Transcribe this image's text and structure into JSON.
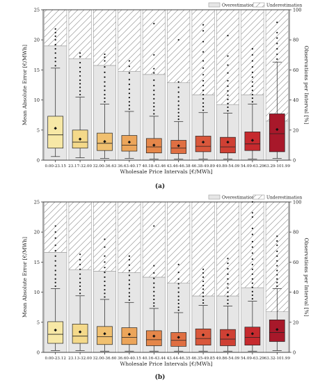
{
  "panel_labels": [
    "(a)",
    "(b)"
  ],
  "legend": {
    "over": "Overestimation",
    "under": "Underestimation"
  },
  "chart_data": [
    {
      "type": "box",
      "title": "",
      "xlabel": "Wholesale Price Intervals [€/MWh]",
      "ylabel": "Mean Absolute Error [€/MWh]",
      "ylabel_right": "Observations per Interval [%]",
      "ylim": [
        0,
        25
      ],
      "ylim_right": [
        0,
        100
      ],
      "yticks": [
        "0",
        "5",
        "10",
        "15",
        "20",
        "25"
      ],
      "yticks_right": [
        "0",
        "20",
        "40",
        "60",
        "80",
        "100"
      ],
      "legend_position": "top-right",
      "categories": [
        "0.00-23.15",
        "23.17-32.00",
        "32.00-36.63",
        "36.63-40.17",
        "40.18-43.46",
        "43.46-46.38",
        "46.38-49.89",
        "49.89-54.09",
        "54.09-63.29",
        "63.29-101.99"
      ],
      "overestimation_pct": [
        76,
        67.5,
        63,
        59,
        57,
        51.5,
        43.5,
        37,
        43.5,
        26
      ],
      "box_colors": [
        "#f7e8a6",
        "#f4d98a",
        "#f0c070",
        "#eca55a",
        "#e5874a",
        "#e06f42",
        "#d9573b",
        "#cf4034",
        "#c62a2e",
        "#a8182a"
      ],
      "boxes": [
        {
          "whislo": 0.6,
          "q1": 2.0,
          "med": 4.2,
          "q3": 7.3,
          "whishi": 15.3,
          "mean": 5.3,
          "fliers": [
            15.7,
            16.4,
            17.0,
            17.8,
            18.5,
            19.2,
            20.0,
            20.6,
            21.2,
            21.8
          ]
        },
        {
          "whislo": 0.4,
          "q1": 2.0,
          "med": 3.0,
          "q3": 5.0,
          "whishi": 10.5,
          "mean": 3.5,
          "fliers": [
            10.9,
            11.5,
            12.1,
            12.7,
            13.3,
            14.0,
            14.7,
            15.4,
            16.2,
            17.2,
            17.8
          ]
        },
        {
          "whislo": 0.3,
          "q1": 1.6,
          "med": 2.8,
          "q3": 4.5,
          "whishi": 9.3,
          "mean": 3.1,
          "fliers": [
            9.7,
            10.3,
            10.9,
            11.6,
            12.3,
            13.0,
            13.8,
            14.6,
            15.5,
            16.5,
            17.1,
            17.6
          ]
        },
        {
          "whislo": 0.3,
          "q1": 1.5,
          "med": 2.5,
          "q3": 4.1,
          "whishi": 8.1,
          "mean": 3.0,
          "fliers": [
            8.5,
            9.1,
            9.7,
            10.4,
            11.1,
            11.8,
            12.6,
            13.4,
            14.5,
            15.6,
            16.5
          ]
        },
        {
          "whislo": 0.2,
          "q1": 1.2,
          "med": 2.2,
          "q3": 3.6,
          "whishi": 7.3,
          "mean": 2.5,
          "fliers": [
            7.7,
            8.3,
            8.9,
            9.5,
            10.2,
            10.9,
            11.6,
            12.4,
            13.3,
            14.5,
            15.2,
            17.5,
            22.7
          ]
        },
        {
          "whislo": 0.2,
          "q1": 1.1,
          "med": 2.0,
          "q3": 3.3,
          "whishi": 6.4,
          "mean": 2.4,
          "fliers": [
            6.8,
            7.3,
            7.9,
            8.5,
            9.1,
            9.8,
            10.5,
            11.3,
            12.1,
            13.0,
            20.0
          ]
        },
        {
          "whislo": 0.2,
          "q1": 1.4,
          "med": 2.3,
          "q3": 4.0,
          "whishi": 7.9,
          "mean": 3.0,
          "fliers": [
            8.3,
            8.9,
            9.5,
            10.2,
            10.9,
            11.6,
            12.4,
            13.2,
            14.2,
            15.3,
            16.5,
            18.0,
            19.7,
            21.5,
            22.5
          ]
        },
        {
          "whislo": 0.2,
          "q1": 1.2,
          "med": 2.2,
          "q3": 3.8,
          "whishi": 7.8,
          "mean": 3.0,
          "fliers": [
            8.2,
            8.8,
            9.4,
            10.1,
            10.8,
            11.5,
            12.3,
            13.2,
            14.5,
            15.8,
            17.3,
            20.7
          ]
        },
        {
          "whislo": 0.2,
          "q1": 1.6,
          "med": 2.7,
          "q3": 4.7,
          "whishi": 9.3,
          "mean": 3.3,
          "fliers": [
            9.7,
            10.3,
            10.9,
            11.6,
            12.3,
            13.0,
            13.8,
            14.6,
            15.5,
            16.5,
            17.5,
            18.5
          ]
        },
        {
          "whislo": 0.3,
          "q1": 1.4,
          "med": 4.4,
          "q3": 7.7,
          "whishi": 16.3,
          "mean": 5.1,
          "fliers": [
            16.8,
            17.6,
            18.5,
            19.4,
            20.3,
            21.2,
            22.9
          ]
        }
      ]
    },
    {
      "type": "box",
      "title": "",
      "xlabel": "Wholesale Price Intervals [€/MWh]",
      "ylabel": "Mean Absolute Error [€/MWh]",
      "ylabel_right": "Observations per Interval [%]",
      "ylim": [
        0,
        25
      ],
      "ylim_right": [
        0,
        100
      ],
      "yticks": [
        "0",
        "5",
        "10",
        "15",
        "20",
        "25"
      ],
      "yticks_right": [
        "0",
        "20",
        "40",
        "60",
        "80",
        "100"
      ],
      "legend_position": "top-right",
      "categories": [
        "0.00-23.12",
        "23.13-32.00",
        "32.00-36.60",
        "36.60-40.15",
        "40.16-43.44",
        "43.44-46.35",
        "46.35-49.85",
        "49.86-54.09",
        "54.09-63.29",
        "63.32-101.99"
      ],
      "overestimation_pct": [
        66.5,
        55,
        54,
        53,
        50,
        46,
        37.5,
        37.5,
        43,
        27
      ],
      "box_colors": [
        "#f7e8a6",
        "#f4d98a",
        "#f0c070",
        "#eca55a",
        "#e5874a",
        "#e06f42",
        "#d9573b",
        "#cf4034",
        "#c62a2e",
        "#a8182a"
      ],
      "boxes": [
        {
          "whislo": 0.3,
          "q1": 1.5,
          "med": 3.0,
          "q3": 5.1,
          "whishi": 10.6,
          "mean": 3.7,
          "fliers": [
            11.0,
            11.6,
            12.2,
            12.9,
            13.6,
            14.4,
            15.2,
            16.0,
            16.9,
            17.8,
            19.0,
            20.0,
            21.0
          ]
        },
        {
          "whislo": 0.3,
          "q1": 1.5,
          "med": 2.7,
          "q3": 4.7,
          "whishi": 9.4,
          "mean": 3.4,
          "fliers": [
            9.8,
            10.4,
            11.0,
            11.6,
            12.3,
            13.0,
            13.8,
            14.6,
            15.4,
            16.3
          ]
        },
        {
          "whislo": 0.2,
          "q1": 1.3,
          "med": 2.6,
          "q3": 4.3,
          "whishi": 8.8,
          "mean": 3.1,
          "fliers": [
            9.2,
            9.8,
            10.4,
            11.1,
            11.8,
            12.5,
            13.3,
            14.1,
            15.0,
            16.0,
            17.5,
            18.8
          ]
        },
        {
          "whislo": 0.2,
          "q1": 1.3,
          "med": 2.5,
          "q3": 4.1,
          "whishi": 8.3,
          "mean": 3.0,
          "fliers": [
            8.7,
            9.3,
            9.9,
            10.6,
            11.3,
            12.0,
            12.8,
            13.6,
            14.5,
            15.4,
            16.0
          ]
        },
        {
          "whislo": 0.2,
          "q1": 1.1,
          "med": 2.1,
          "q3": 3.6,
          "whishi": 7.3,
          "mean": 2.7,
          "fliers": [
            7.7,
            8.2,
            8.8,
            9.4,
            10.1,
            10.8,
            11.5,
            12.3,
            13.2,
            14.4,
            21.0
          ]
        },
        {
          "whislo": 0.2,
          "q1": 1.0,
          "med": 2.0,
          "q3": 3.3,
          "whishi": 6.6,
          "mean": 2.5,
          "fliers": [
            7.0,
            7.5,
            8.1,
            8.7,
            9.3,
            10.0,
            10.7,
            11.4,
            12.2,
            13.3,
            14.6
          ]
        },
        {
          "whislo": 0.2,
          "q1": 1.2,
          "med": 2.3,
          "q3": 3.9,
          "whishi": 7.8,
          "mean": 2.9,
          "fliers": [
            8.2,
            8.7,
            9.3,
            9.9,
            10.5,
            11.1,
            11.8,
            12.5,
            13.2,
            13.8
          ]
        },
        {
          "whislo": 0.2,
          "q1": 1.1,
          "med": 2.2,
          "q3": 3.8,
          "whishi": 7.7,
          "mean": 2.9,
          "fliers": [
            8.1,
            8.7,
            9.3,
            10.0,
            10.7,
            11.4,
            12.2,
            13.0,
            13.9,
            14.8,
            15.6
          ]
        },
        {
          "whislo": 0.2,
          "q1": 1.2,
          "med": 2.5,
          "q3": 4.2,
          "whishi": 8.5,
          "mean": 3.1,
          "fliers": [
            8.9,
            9.5,
            10.1,
            10.8,
            11.5,
            12.2,
            13.0,
            13.8,
            14.6,
            15.5,
            16.5,
            17.5,
            18.4,
            19.6,
            20.6,
            22.5,
            23.2,
            25.0
          ]
        },
        {
          "whislo": 0.3,
          "q1": 1.8,
          "med": 3.3,
          "q3": 5.4,
          "whishi": 10.6,
          "mean": 3.8,
          "fliers": [
            11.0,
            11.6,
            12.2,
            12.9,
            13.6,
            14.4,
            15.2,
            16.0,
            16.8,
            17.8,
            18.5,
            19.3
          ]
        }
      ]
    }
  ]
}
